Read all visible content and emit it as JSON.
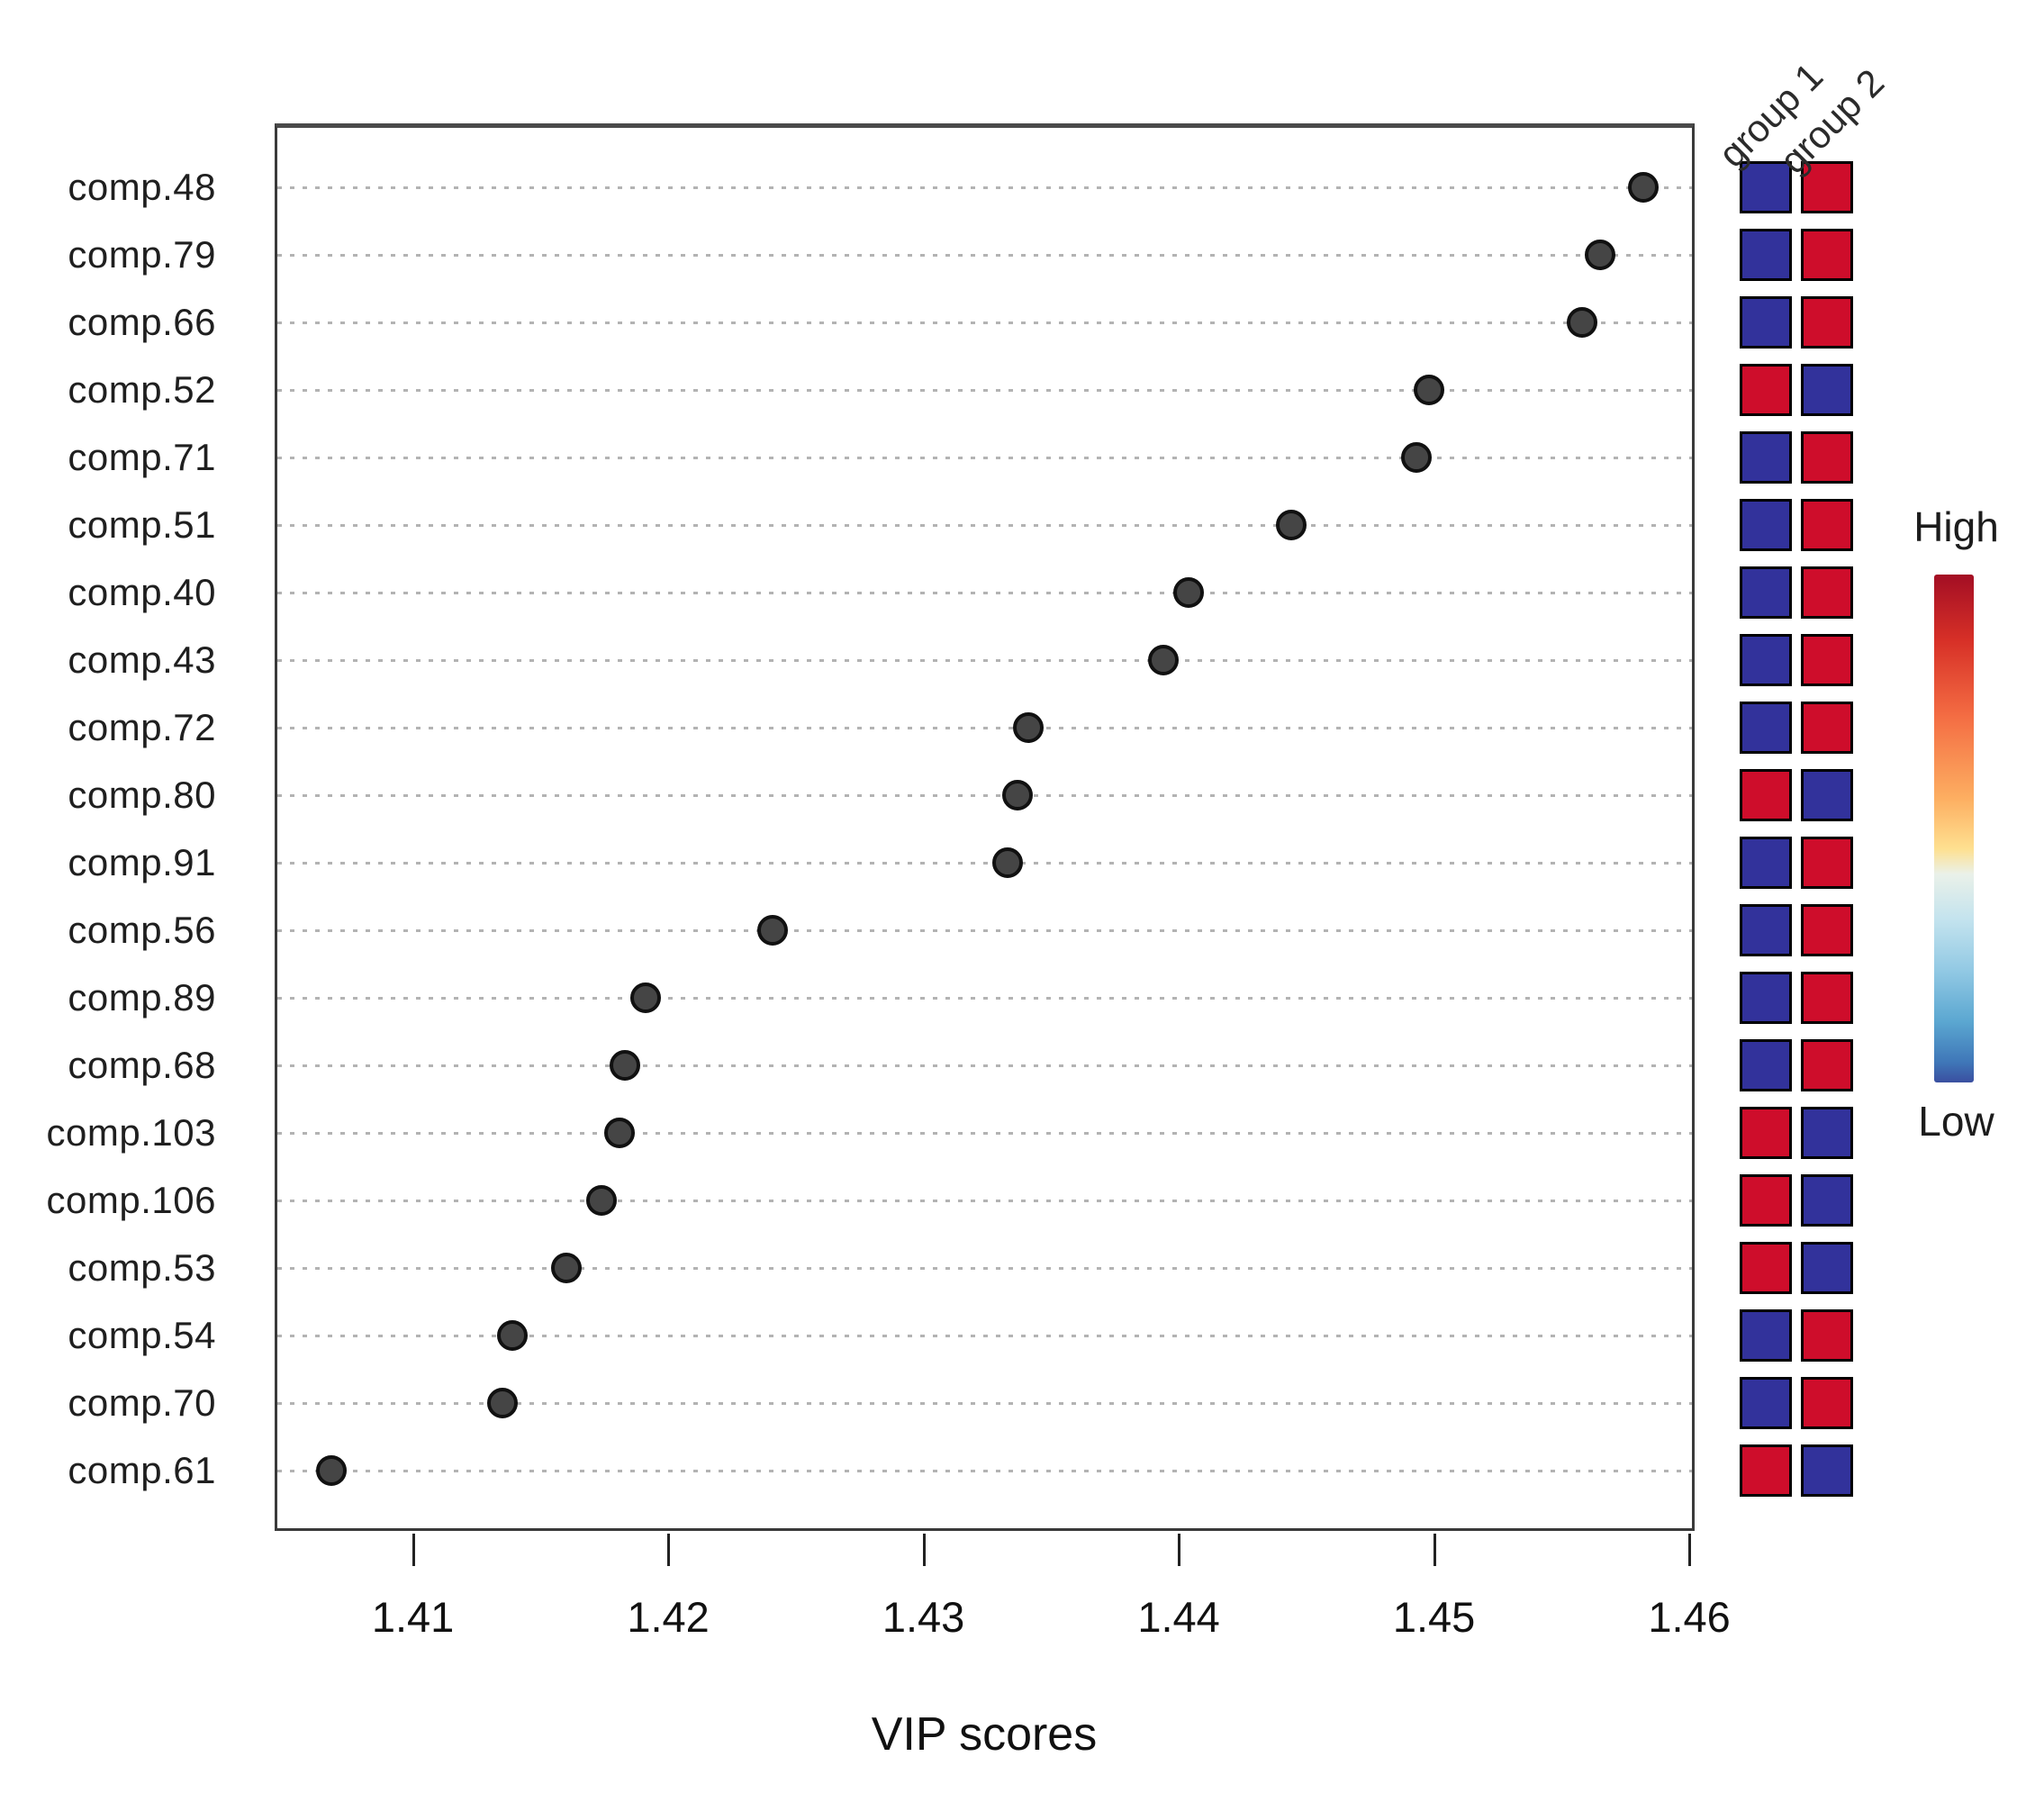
{
  "chart_data": {
    "type": "scatter",
    "title": "",
    "xlabel": "VIP scores",
    "x_ticks": [
      "1.41",
      "1.42",
      "1.43",
      "1.44",
      "1.45",
      "1.46"
    ],
    "x_range": [
      1.4046,
      1.4605
    ],
    "grid": "dotted-horizontal",
    "legend_position": "right",
    "features": [
      {
        "name": "comp.48",
        "vip": 1.4582,
        "group1": "low",
        "group2": "high"
      },
      {
        "name": "comp.79",
        "vip": 1.4565,
        "group1": "low",
        "group2": "high"
      },
      {
        "name": "comp.66",
        "vip": 1.4558,
        "group1": "low",
        "group2": "high"
      },
      {
        "name": "comp.52",
        "vip": 1.4498,
        "group1": "high",
        "group2": "low"
      },
      {
        "name": "comp.71",
        "vip": 1.4493,
        "group1": "low",
        "group2": "high"
      },
      {
        "name": "comp.51",
        "vip": 1.4444,
        "group1": "low",
        "group2": "high"
      },
      {
        "name": "comp.40",
        "vip": 1.4404,
        "group1": "low",
        "group2": "high"
      },
      {
        "name": "comp.43",
        "vip": 1.4394,
        "group1": "low",
        "group2": "high"
      },
      {
        "name": "comp.72",
        "vip": 1.4341,
        "group1": "low",
        "group2": "high"
      },
      {
        "name": "comp.80",
        "vip": 1.4337,
        "group1": "high",
        "group2": "low"
      },
      {
        "name": "comp.91",
        "vip": 1.4333,
        "group1": "low",
        "group2": "high"
      },
      {
        "name": "comp.56",
        "vip": 1.4241,
        "group1": "low",
        "group2": "high"
      },
      {
        "name": "comp.89",
        "vip": 1.4191,
        "group1": "low",
        "group2": "high"
      },
      {
        "name": "comp.68",
        "vip": 1.4183,
        "group1": "low",
        "group2": "high"
      },
      {
        "name": "comp.103",
        "vip": 1.4181,
        "group1": "high",
        "group2": "low"
      },
      {
        "name": "comp.106",
        "vip": 1.4174,
        "group1": "high",
        "group2": "low"
      },
      {
        "name": "comp.53",
        "vip": 1.416,
        "group1": "high",
        "group2": "low"
      },
      {
        "name": "comp.54",
        "vip": 1.4139,
        "group1": "low",
        "group2": "high"
      },
      {
        "name": "comp.70",
        "vip": 1.4135,
        "group1": "low",
        "group2": "high"
      },
      {
        "name": "comp.61",
        "vip": 1.4068,
        "group1": "high",
        "group2": "low"
      }
    ],
    "heatmap_columns": [
      {
        "label": "group 1"
      },
      {
        "label": "group 2"
      }
    ],
    "colorbar": {
      "high_label": "High",
      "low_label": "Low",
      "scale": "red-yellow-blue"
    },
    "colors": {
      "high_cell": "#CE0D2B",
      "low_cell": "#32329B",
      "cell_border": "#000000",
      "dot_fill": "#454545",
      "dot_border": "#111111",
      "gridline": "#b3b3b3",
      "axis": "#3a3a3a"
    }
  }
}
